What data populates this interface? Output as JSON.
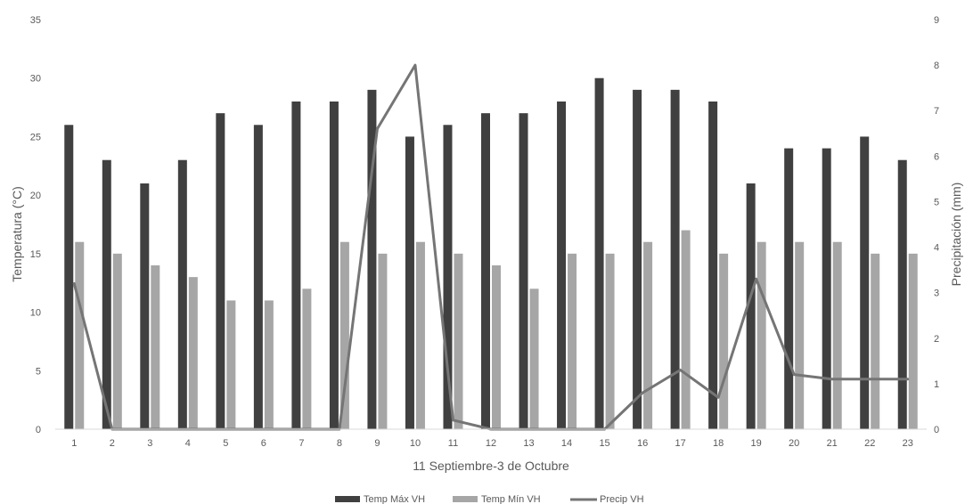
{
  "chart_data": {
    "type": "bar",
    "title": "",
    "xlabel": "11 Septiembre-3  de Octubre",
    "ylabel": "Temperatura  (°C)",
    "y2label": "Precipitación (mm)",
    "categories": [
      "1",
      "2",
      "3",
      "4",
      "5",
      "6",
      "7",
      "8",
      "9",
      "10",
      "11",
      "12",
      "13",
      "14",
      "15",
      "16",
      "17",
      "18",
      "19",
      "20",
      "21",
      "22",
      "23"
    ],
    "ylim": [
      0,
      35
    ],
    "y_ticks": [
      "0",
      "5",
      "10",
      "15",
      "20",
      "25",
      "30",
      "35"
    ],
    "y2lim": [
      0,
      9
    ],
    "y2_ticks": [
      "0",
      "1",
      "2",
      "3",
      "4",
      "5",
      "6",
      "7",
      "8",
      "9"
    ],
    "grid": false,
    "legend_position": "bottom",
    "series": [
      {
        "name": "Temp Máx VH",
        "type": "bar",
        "axis": "left",
        "color": "#404040",
        "values": [
          26,
          23,
          21,
          23,
          27,
          26,
          28,
          28,
          29,
          25,
          26,
          27,
          27,
          28,
          30,
          29,
          29,
          28,
          21,
          24,
          24,
          25,
          23
        ]
      },
      {
        "name": "Temp Mín VH",
        "type": "bar",
        "axis": "left",
        "color": "#a6a6a6",
        "values": [
          16,
          15,
          14,
          13,
          11,
          11,
          12,
          16,
          15,
          16,
          15,
          14,
          12,
          15,
          15,
          16,
          17,
          15,
          16,
          16,
          16,
          15,
          15
        ]
      },
      {
        "name": "Precip VH",
        "type": "line",
        "axis": "right",
        "color": "#757575",
        "values": [
          3.2,
          0,
          0,
          0,
          0,
          0,
          0,
          0,
          6.6,
          8.0,
          0.2,
          0,
          0,
          0,
          0,
          0.8,
          1.3,
          0.7,
          3.3,
          1.2,
          1.1,
          1.1,
          1.1
        ]
      }
    ]
  }
}
